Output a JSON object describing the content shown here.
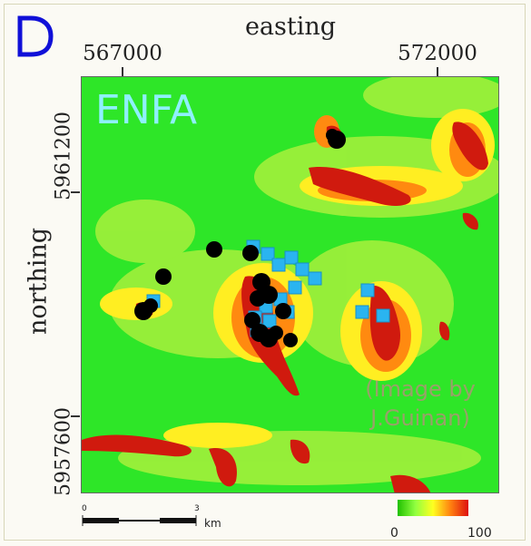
{
  "panel_letter": "D",
  "map_title": "ENFA",
  "credit_line1": "(Image by",
  "credit_line2": "J.Guinan)",
  "axes": {
    "x_title": "easting",
    "x_ticks": [
      "567000",
      "572000"
    ],
    "y_title": "northing",
    "y_ticks": [
      "5961200",
      "5957600"
    ]
  },
  "scale": {
    "start": "0",
    "mid": "3",
    "unit": "km"
  },
  "legend": {
    "min": "0",
    "max": "100"
  },
  "colors": {
    "background_habitat": "#2ee628",
    "high_suitability": "#d01a0e",
    "medium_suitability": "#ffee22",
    "low_suitability": "#a8f03c",
    "point_black": "#000000",
    "point_cyan": "#2ab4f0"
  },
  "symbols": [
    "black-circle-marker",
    "cyan-square-marker"
  ]
}
